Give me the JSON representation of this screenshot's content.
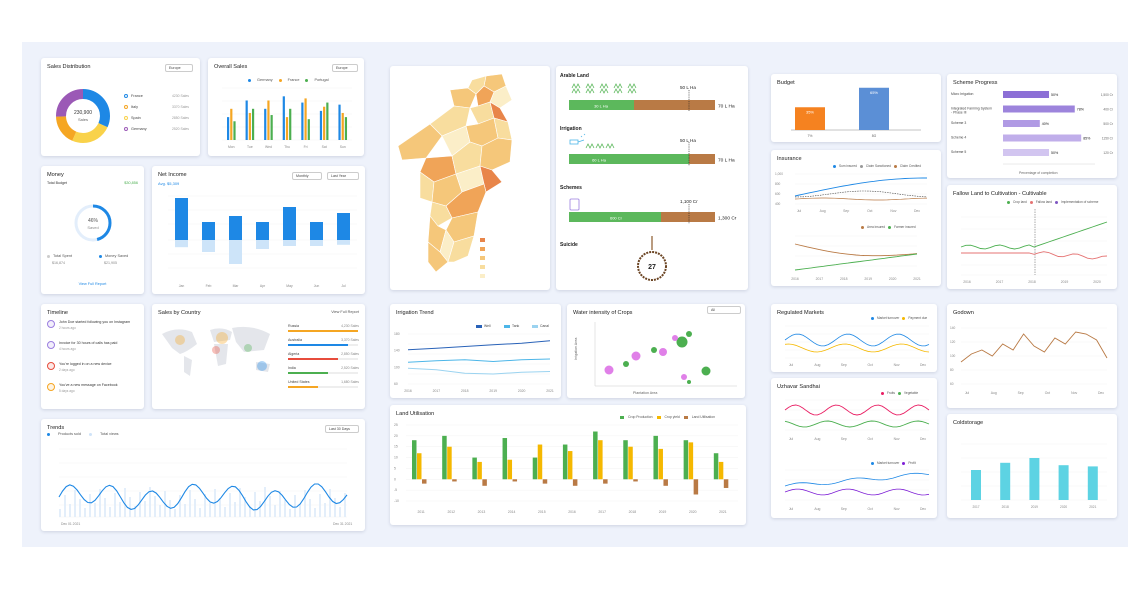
{
  "colors": {
    "blue": "#1e88e5",
    "lightblue": "#bfdcf6",
    "green": "#5cb85c",
    "brown": "#b97a45",
    "orange": "#f5a623",
    "purple": "#9b7ee0"
  },
  "sales_distribution": {
    "title": "Sales Distribution",
    "select": "Europe",
    "center_value": "230,900",
    "center_label": "Sales",
    "legend": [
      {
        "name": "France",
        "value": "4230 Sales",
        "color": "#1e88e5"
      },
      {
        "name": "Italy",
        "value": "3370 Sales",
        "color": "#f5a623"
      },
      {
        "name": "Spain",
        "value": "2850 Sales",
        "color": "#f9d24a"
      },
      {
        "name": "Germany",
        "value": "2520 Sales",
        "color": "#9b59b6"
      }
    ]
  },
  "overall_sales": {
    "title": "Overall Sales",
    "select": "Europe",
    "legend": [
      "Germany",
      "France",
      "Portugal"
    ],
    "categories": [
      "Mon",
      "Tue",
      "Wed",
      "Thu",
      "Fri",
      "Sat",
      "Sun"
    ],
    "series": [
      {
        "name": "Germany",
        "color": "#1e88e5",
        "values": [
          22,
          38,
          30,
          42,
          36,
          28,
          34
        ]
      },
      {
        "name": "France",
        "color": "#f5a623",
        "values": [
          30,
          26,
          38,
          22,
          40,
          32,
          26
        ]
      },
      {
        "name": "Portugal",
        "color": "#4caf50",
        "values": [
          18,
          30,
          24,
          30,
          20,
          36,
          22
        ]
      }
    ]
  },
  "money": {
    "title": "Money",
    "budget_label": "Total Budget",
    "budget_value": "$30,856",
    "percent": "46%",
    "percent_label": "Saved",
    "percent_value": 46,
    "spent_label": "Total Spent",
    "spent_value": "$16,874",
    "saved_label": "Money Saved",
    "saved_value": "$21,905",
    "link": "View Full Report"
  },
  "net_income": {
    "title": "Net Income",
    "subtitle": "Avg. $5,309",
    "select1": "Monthly",
    "select2": "Last Year",
    "categories": [
      "Jan",
      "Feb",
      "Mar",
      "Apr",
      "May",
      "Jun",
      "Jul"
    ],
    "positive": [
      70,
      30,
      40,
      30,
      55,
      30,
      45
    ],
    "negative": [
      -12,
      -20,
      -40,
      -15,
      -10,
      -10,
      -8
    ]
  },
  "timeline": {
    "title": "Timeline",
    "items": [
      {
        "text": "John Doe started following you on Instagram",
        "time": "2 hours ago",
        "color": "#9b7ee0"
      },
      {
        "text": "Invoice for 30 hours of calls has paid",
        "time": "4 hours ago",
        "color": "#9b7ee0"
      },
      {
        "text": "You're logged in on a new device",
        "time": "2 days ago",
        "color": "#e74c3c"
      },
      {
        "text": "You've a new message on Facebook",
        "time": "5 days ago",
        "color": "#f5a623"
      }
    ]
  },
  "sales_by_country": {
    "title": "Sales by Country",
    "link": "View Full Report",
    "rows": [
      {
        "name": "Russia",
        "value": "4,230 Sales",
        "color": "#f5a623"
      },
      {
        "name": "Australia",
        "value": "3,370 Sales",
        "color": "#1e88e5"
      },
      {
        "name": "Algeria",
        "value": "2,850 Sales",
        "color": "#e74c3c"
      },
      {
        "name": "India",
        "value": "2,520 Sales",
        "color": "#4caf50"
      },
      {
        "name": "United States",
        "value": "1,680 Sales",
        "color": "#f5a623"
      }
    ]
  },
  "trends": {
    "title": "Trends",
    "legend": [
      "Products sold",
      "Total views"
    ],
    "select": "Last 30 Days",
    "x_start": "Dec 01 2021",
    "x_end": "Dec 31 2021"
  },
  "map_legend_colors": [
    "#e8854a",
    "#f0a458",
    "#f5c77a",
    "#f8dd9e",
    "#fbeec8"
  ],
  "land": {
    "arable": {
      "title": "Arable Land",
      "marker": "50 L Ha",
      "fill": "30 L Ha",
      "total": "70 L Ha"
    },
    "irrigation": {
      "title": "Irrigation",
      "marker": "50 L Ha",
      "fill": "60 L Ha",
      "total": "70 L Ha"
    },
    "schemes": {
      "title": "Schemes",
      "marker": "1,100 Cr",
      "fill": "600 Cr",
      "total": "1,300 Cr"
    },
    "suicide": {
      "title": "Suicide",
      "value": "27"
    }
  },
  "irrigation_trend": {
    "title": "Irrigation Trend",
    "legend": [
      "Well",
      "Tank",
      "Canal"
    ],
    "x": [
      "2016",
      "2017",
      "2018",
      "2019",
      "2020",
      "2021"
    ],
    "series": [
      {
        "name": "Well",
        "color": "#2962b8",
        "values": [
          142,
          146,
          150,
          154,
          158,
          164
        ]
      },
      {
        "name": "Tank",
        "color": "#4db6e8",
        "values": [
          112,
          116,
          118,
          114,
          118,
          120
        ]
      },
      {
        "name": "Canal",
        "color": "#9bd3f0",
        "values": [
          98,
          94,
          86,
          84,
          88,
          90
        ]
      }
    ],
    "ylim": [
      60,
      180
    ]
  },
  "water_intensity": {
    "title": "Water intensity of Crops",
    "select": "All",
    "xlabel": "Plantation Area",
    "ylabel": "Irrigation Area"
  },
  "land_utilisation": {
    "title": "Land Utilisation",
    "legend": [
      "Crop Production",
      "Crop yield",
      "Land Utilisation"
    ],
    "x": [
      "2011",
      "2012",
      "2013",
      "2014",
      "2015",
      "2016",
      "2017",
      "2018",
      "2019",
      "2020",
      "2021"
    ],
    "series": [
      {
        "name": "Crop Production",
        "color": "#4caf50",
        "values": [
          18,
          20,
          10,
          19,
          10,
          16,
          22,
          18,
          20,
          18,
          12
        ]
      },
      {
        "name": "Crop yield",
        "color": "#f5b800",
        "values": [
          12,
          15,
          8,
          9,
          16,
          13,
          18,
          15,
          14,
          17,
          8
        ]
      },
      {
        "name": "Land Utilisation",
        "color": "#b97a45",
        "values": [
          -2,
          -1,
          -3,
          -1,
          -2,
          -3,
          -2,
          -1,
          -3,
          -7,
          -4
        ]
      }
    ],
    "ylim": [
      -10,
      25
    ]
  },
  "budget": {
    "title": "Budget",
    "bars": [
      {
        "label": "7%",
        "value": 35,
        "text": "35%",
        "color": "#f58220"
      },
      {
        "label": "8G",
        "value": 65,
        "text": "65%",
        "color": "#5b8fd6"
      }
    ]
  },
  "insurance": {
    "title": "Insurance",
    "legend1": [
      "Sum insured",
      "Claim Sanctioned",
      "Claim Credited"
    ],
    "legend2": [
      "Area insured",
      "Farmer insured"
    ],
    "x": [
      "Jul",
      "Aug",
      "Sep",
      "Oct",
      "Nov",
      "Dec"
    ],
    "x2": [
      "2016",
      "2017",
      "2018",
      "2019",
      "2020",
      "2021"
    ]
  },
  "scheme_progress": {
    "title": "Scheme Progress",
    "xlabel": "Percentage of completion",
    "rows": [
      {
        "name": "Micro Irrigation",
        "value": 50,
        "text": "50%",
        "amount": "1,500 Cr",
        "color": "#8c6fd6"
      },
      {
        "name": "Integrated Farming System - Phase III",
        "value": 78,
        "text": "78%",
        "amount": "400 Cr",
        "color": "#9d84dc"
      },
      {
        "name": "Scheme 3",
        "value": 40,
        "text": "40%",
        "amount": "500 Cr",
        "color": "#b09ae4"
      },
      {
        "name": "Scheme 4",
        "value": 85,
        "text": "85%",
        "amount": "1150 Cr",
        "color": "#c0aeea"
      },
      {
        "name": "Scheme 5",
        "value": 50,
        "text": "50%",
        "amount": "120 Cr",
        "color": "#d2c5f0"
      }
    ]
  },
  "fallow": {
    "title": "Fallow Land to Cultivation - Cultivable",
    "legend": [
      "Crop land",
      "Fallow land",
      "Implementation of scheme"
    ],
    "x": [
      "2016",
      "2017",
      "2018",
      "2019",
      "2020"
    ]
  },
  "regulated": {
    "title": "Regulated Markets",
    "legend": [
      "Market turnover",
      "Payment due"
    ],
    "x": [
      "Jul",
      "Aug",
      "Sep",
      "Oct",
      "Nov",
      "Dec"
    ]
  },
  "uzhavar": {
    "title": "Uzhavar Sandhai",
    "legend": [
      "Fruits",
      "Vegetable"
    ],
    "legend2": [
      "Market turnover",
      "Profit"
    ],
    "x": [
      "Jul",
      "Aug",
      "Sep",
      "Oct",
      "Nov",
      "Dec"
    ]
  },
  "godown": {
    "title": "Godown",
    "x": [
      "Jul",
      "Aug",
      "Sep",
      "Oct",
      "Nov",
      "Dec"
    ]
  },
  "coldstorage": {
    "title": "Coldstorage",
    "x": [
      "2017",
      "2018",
      "2019",
      "2020",
      "2021"
    ],
    "values": [
      50,
      62,
      70,
      58,
      56
    ]
  }
}
